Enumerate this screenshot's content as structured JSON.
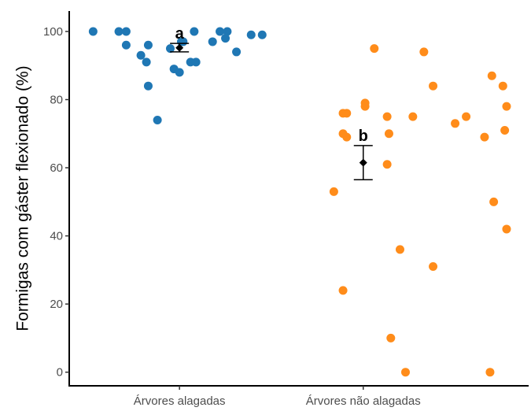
{
  "chart_data": {
    "type": "scatter",
    "ylabel": "Formigas com gáster flexionado (%)",
    "xlabel": "",
    "categories": [
      "Árvores alagadas",
      "Árvores não alagadas"
    ],
    "ylim": [
      -4,
      106
    ],
    "yticks": [
      0,
      20,
      40,
      60,
      80,
      100
    ],
    "colors": {
      "Árvores alagadas": "#1f77b4",
      "Árvores não alagadas": "#ff8c1a",
      "summary": "#000000"
    },
    "groups": [
      {
        "name": "Árvores alagadas",
        "points": [
          {
            "x": 0.53,
            "y": 100
          },
          {
            "x": 0.67,
            "y": 100
          },
          {
            "x": 0.71,
            "y": 100
          },
          {
            "x": 1.08,
            "y": 100
          },
          {
            "x": 1.22,
            "y": 100
          },
          {
            "x": 1.26,
            "y": 100
          },
          {
            "x": 0.71,
            "y": 96
          },
          {
            "x": 0.83,
            "y": 96
          },
          {
            "x": 0.79,
            "y": 93
          },
          {
            "x": 0.82,
            "y": 91
          },
          {
            "x": 0.95,
            "y": 95
          },
          {
            "x": 1.01,
            "y": 97
          },
          {
            "x": 1.02,
            "y": 97
          },
          {
            "x": 1.18,
            "y": 97
          },
          {
            "x": 1.25,
            "y": 98
          },
          {
            "x": 1.39,
            "y": 99
          },
          {
            "x": 1.45,
            "y": 99
          },
          {
            "x": 1.31,
            "y": 94
          },
          {
            "x": 1.06,
            "y": 91
          },
          {
            "x": 1.09,
            "y": 91
          },
          {
            "x": 0.97,
            "y": 89
          },
          {
            "x": 1.0,
            "y": 88
          },
          {
            "x": 0.83,
            "y": 84
          },
          {
            "x": 0.88,
            "y": 74
          }
        ],
        "mean": 95.2,
        "ci": [
          94,
          96.5
        ],
        "label": "a"
      },
      {
        "name": "Árvores não alagadas",
        "points": [
          {
            "x": 1.84,
            "y": 53
          },
          {
            "x": 1.89,
            "y": 76
          },
          {
            "x": 1.91,
            "y": 76
          },
          {
            "x": 1.89,
            "y": 70
          },
          {
            "x": 1.91,
            "y": 69
          },
          {
            "x": 1.89,
            "y": 24
          },
          {
            "x": 2.01,
            "y": 79
          },
          {
            "x": 2.01,
            "y": 78
          },
          {
            "x": 2.06,
            "y": 95
          },
          {
            "x": 2.13,
            "y": 75
          },
          {
            "x": 2.13,
            "y": 61
          },
          {
            "x": 2.14,
            "y": 70
          },
          {
            "x": 2.2,
            "y": 36
          },
          {
            "x": 2.15,
            "y": 10
          },
          {
            "x": 2.23,
            "y": 0
          },
          {
            "x": 2.27,
            "y": 75
          },
          {
            "x": 2.33,
            "y": 94
          },
          {
            "x": 2.38,
            "y": 84
          },
          {
            "x": 2.38,
            "y": 31
          },
          {
            "x": 2.5,
            "y": 73
          },
          {
            "x": 2.56,
            "y": 75
          },
          {
            "x": 2.66,
            "y": 69
          },
          {
            "x": 2.7,
            "y": 87
          },
          {
            "x": 2.76,
            "y": 84
          },
          {
            "x": 2.78,
            "y": 78
          },
          {
            "x": 2.77,
            "y": 71
          },
          {
            "x": 2.71,
            "y": 50
          },
          {
            "x": 2.78,
            "y": 42
          },
          {
            "x": 2.69,
            "y": 0
          }
        ],
        "mean": 61.5,
        "ci": [
          56.5,
          66.5
        ],
        "label": "b"
      }
    ],
    "grid": false,
    "legend": "none"
  }
}
